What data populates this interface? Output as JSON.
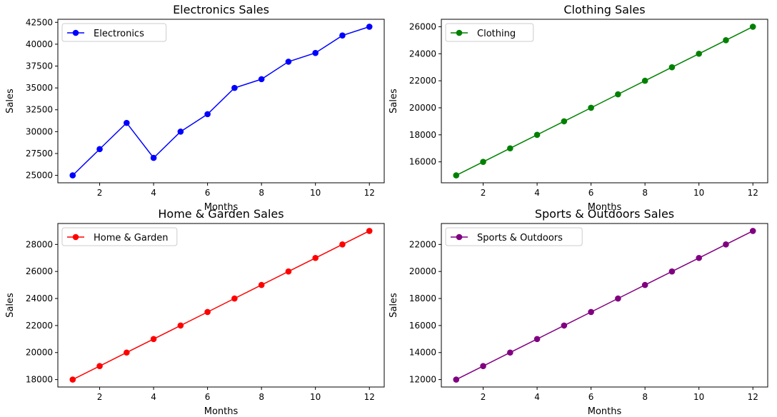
{
  "chart_data": [
    {
      "type": "line",
      "title": "Electronics Sales",
      "xlabel": "Months",
      "ylabel": "Sales",
      "x": [
        1,
        2,
        3,
        4,
        5,
        6,
        7,
        8,
        9,
        10,
        11,
        12
      ],
      "series": [
        {
          "name": "Electronics",
          "color": "#0000ff",
          "marker": "circle",
          "values": [
            25000,
            28000,
            31000,
            27000,
            30000,
            32000,
            35000,
            36000,
            38000,
            39000,
            41000,
            42000
          ]
        }
      ],
      "xlim": [
        0.45,
        12.55
      ],
      "ylim": [
        24150,
        42850
      ],
      "xticks": [
        2,
        4,
        6,
        8,
        10,
        12
      ],
      "yticks": [
        25000,
        27500,
        30000,
        32500,
        35000,
        37500,
        40000,
        42500
      ],
      "grid": false,
      "legend": "upper-left"
    },
    {
      "type": "line",
      "title": "Clothing Sales",
      "xlabel": "Months",
      "ylabel": "Sales",
      "x": [
        1,
        2,
        3,
        4,
        5,
        6,
        7,
        8,
        9,
        10,
        11,
        12
      ],
      "series": [
        {
          "name": "Clothing",
          "color": "#008000",
          "marker": "circle",
          "values": [
            15000,
            16000,
            17000,
            18000,
            19000,
            20000,
            21000,
            22000,
            23000,
            24000,
            25000,
            26000
          ]
        }
      ],
      "xlim": [
        0.45,
        12.55
      ],
      "ylim": [
        14450,
        26550
      ],
      "xticks": [
        2,
        4,
        6,
        8,
        10,
        12
      ],
      "yticks": [
        16000,
        18000,
        20000,
        22000,
        24000,
        26000
      ],
      "grid": false,
      "legend": "upper-left"
    },
    {
      "type": "line",
      "title": "Home & Garden Sales",
      "xlabel": "Months",
      "ylabel": "Sales",
      "x": [
        1,
        2,
        3,
        4,
        5,
        6,
        7,
        8,
        9,
        10,
        11,
        12
      ],
      "series": [
        {
          "name": "Home & Garden",
          "color": "#ff0000",
          "marker": "circle",
          "values": [
            18000,
            19000,
            20000,
            21000,
            22000,
            23000,
            24000,
            25000,
            26000,
            27000,
            28000,
            29000
          ]
        }
      ],
      "xlim": [
        0.45,
        12.55
      ],
      "ylim": [
        17450,
        29550
      ],
      "xticks": [
        2,
        4,
        6,
        8,
        10,
        12
      ],
      "yticks": [
        18000,
        20000,
        22000,
        24000,
        26000,
        28000
      ],
      "grid": false,
      "legend": "upper-left"
    },
    {
      "type": "line",
      "title": "Sports & Outdoors Sales",
      "xlabel": "Months",
      "ylabel": "Sales",
      "x": [
        1,
        2,
        3,
        4,
        5,
        6,
        7,
        8,
        9,
        10,
        11,
        12
      ],
      "series": [
        {
          "name": "Sports & Outdoors",
          "color": "#800080",
          "marker": "circle",
          "values": [
            12000,
            13000,
            14000,
            15000,
            16000,
            17000,
            18000,
            19000,
            20000,
            21000,
            22000,
            23000
          ]
        }
      ],
      "xlim": [
        0.45,
        12.55
      ],
      "ylim": [
        11450,
        23550
      ],
      "xticks": [
        2,
        4,
        6,
        8,
        10,
        12
      ],
      "yticks": [
        12000,
        14000,
        16000,
        18000,
        20000,
        22000
      ],
      "grid": false,
      "legend": "upper-left"
    }
  ]
}
